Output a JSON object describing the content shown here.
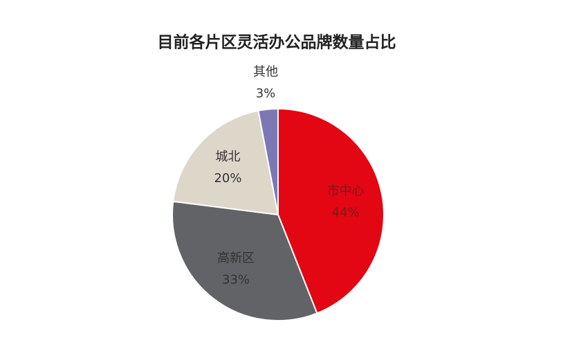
{
  "chart_data": {
    "type": "pie",
    "title": "目前各片区灵活办公品牌数量占比",
    "categories": [
      "市中心",
      "高新区",
      "城北",
      "其他"
    ],
    "values": [
      44,
      33,
      20,
      3
    ],
    "value_labels": [
      "44%",
      "33%",
      "20%",
      "3%"
    ],
    "colors": [
      "#e30613",
      "#626366",
      "#ddd7ca",
      "#7b78b5"
    ]
  }
}
